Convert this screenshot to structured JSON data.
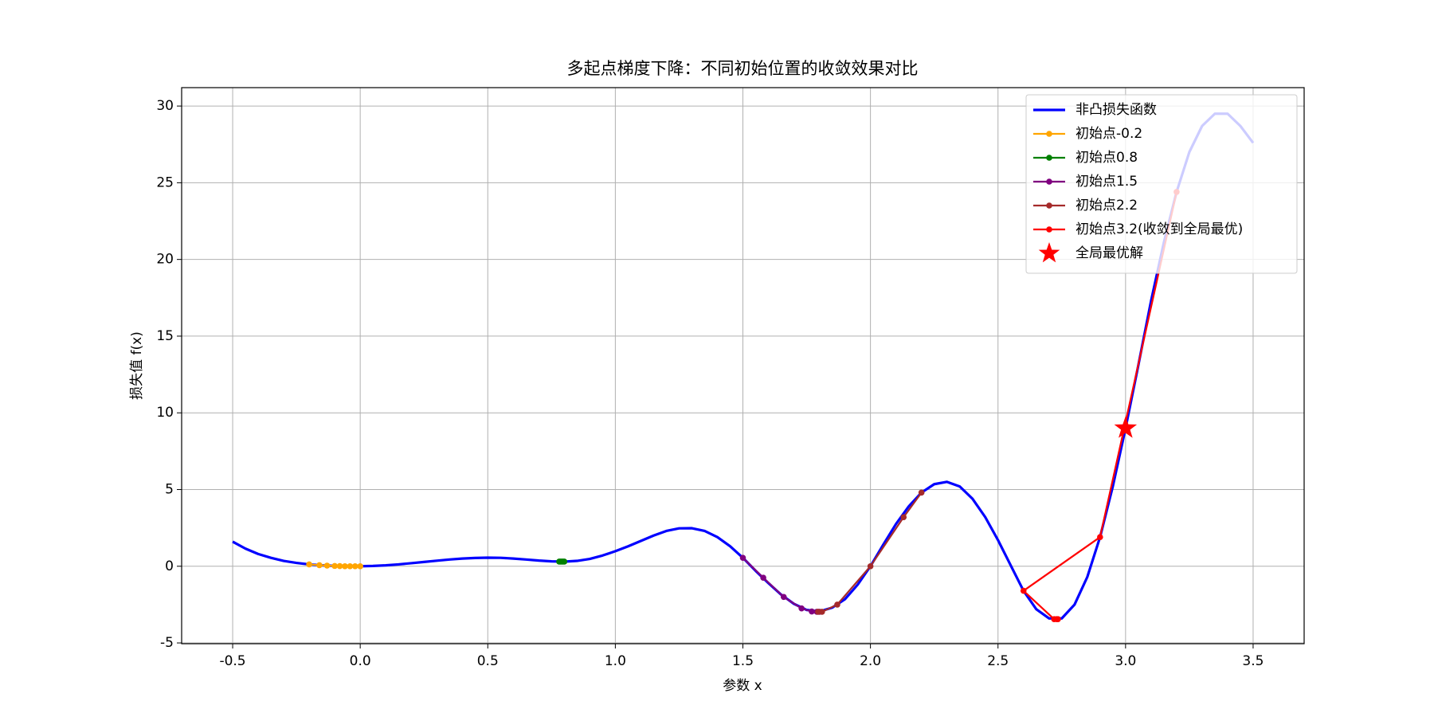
{
  "chart_data": {
    "type": "line",
    "title": "多起点梯度下降：不同初始位置的收敛效果对比",
    "x_label": "参数 x",
    "y_label": "损失值 f(x)",
    "xlim": [
      -0.7,
      3.7
    ],
    "ylim": [
      -5.05,
      31.2
    ],
    "xticks": [
      -0.5,
      {
        "value": 0,
        "label": "0.0"
      },
      0.5,
      {
        "value": 1,
        "label": "1.0"
      },
      1.5,
      {
        "value": 2,
        "label": "2.0"
      },
      2.5,
      {
        "value": 3,
        "label": "3.0"
      },
      3.5
    ],
    "yticks": [
      -5,
      0,
      5,
      10,
      15,
      20,
      25,
      30
    ],
    "grid": true,
    "legend": "upper right",
    "series": [
      {
        "name": "非凸损失函数",
        "color": "#0000ff",
        "marker": "none",
        "x": [
          -0.5,
          -0.45,
          -0.4,
          -0.35,
          -0.3,
          -0.25,
          -0.2,
          -0.15,
          -0.1,
          -0.05,
          0,
          0.05,
          0.1,
          0.15,
          0.2,
          0.25,
          0.3,
          0.35,
          0.4,
          0.45,
          0.5,
          0.55,
          0.6,
          0.65,
          0.7,
          0.75,
          0.8,
          0.85,
          0.9,
          0.95,
          1.0,
          1.05,
          1.1,
          1.15,
          1.2,
          1.25,
          1.3,
          1.35,
          1.4,
          1.45,
          1.5,
          1.55,
          1.6,
          1.65,
          1.7,
          1.75,
          1.8,
          1.85,
          1.9,
          1.95,
          2.0,
          2.05,
          2.1,
          2.15,
          2.2,
          2.25,
          2.3,
          2.35,
          2.4,
          2.45,
          2.5,
          2.55,
          2.6,
          2.65,
          2.7,
          2.75,
          2.8,
          2.85,
          2.9,
          2.95,
          3.0,
          3.05,
          3.1,
          3.15,
          3.2,
          3.25,
          3.3,
          3.35,
          3.4,
          3.45,
          3.5
        ],
        "values": [
          1.6,
          1.15,
          0.8,
          0.55,
          0.35,
          0.22,
          0.12,
          0.06,
          0.02,
          0.0,
          0,
          0.02,
          0.06,
          0.12,
          0.2,
          0.28,
          0.36,
          0.44,
          0.5,
          0.54,
          0.56,
          0.55,
          0.5,
          0.44,
          0.37,
          0.32,
          0.3,
          0.35,
          0.48,
          0.7,
          0.98,
          1.3,
          1.65,
          2.0,
          2.3,
          2.47,
          2.48,
          2.3,
          1.9,
          1.3,
          0.55,
          -0.3,
          -1.1,
          -1.85,
          -2.45,
          -2.85,
          -2.95,
          -2.7,
          -2.15,
          -1.2,
          0,
          1.4,
          2.75,
          3.9,
          4.8,
          5.35,
          5.5,
          5.2,
          4.4,
          3.2,
          1.7,
          0.05,
          -1.6,
          -2.8,
          -3.4,
          -3.4,
          -2.5,
          -0.7,
          1.9,
          5.2,
          9.0,
          13.1,
          17.3,
          21.1,
          24.4,
          27.0,
          28.7,
          29.5,
          29.5,
          28.7,
          27.6
        ]
      },
      {
        "name": "初始点-0.2",
        "color": "#ffa500",
        "marker": "circle",
        "x": [
          -0.2,
          -0.16,
          -0.13,
          -0.1,
          -0.08,
          -0.06,
          -0.04,
          -0.02,
          0
        ],
        "values": [
          0.12,
          0.07,
          0.04,
          0.02,
          0.01,
          0,
          0,
          0,
          0
        ]
      },
      {
        "name": "初始点0.8",
        "color": "#008000",
        "marker": "circle",
        "x": [
          0.8,
          0.795,
          0.79,
          0.785,
          0.78
        ],
        "values": [
          0.3,
          0.3,
          0.3,
          0.3,
          0.3
        ]
      },
      {
        "name": "初始点1.5",
        "color": "#800080",
        "marker": "circle",
        "x": [
          1.5,
          1.58,
          1.66,
          1.73,
          1.77,
          1.79,
          1.8
        ],
        "values": [
          0.55,
          -0.75,
          -2.0,
          -2.75,
          -2.95,
          -2.97,
          -2.97
        ]
      },
      {
        "name": "初始点2.2",
        "color": "#a52a2a",
        "marker": "circle",
        "x": [
          2.2,
          2.13,
          2.0,
          1.87,
          1.81,
          1.795
        ],
        "values": [
          4.8,
          3.2,
          0,
          -2.5,
          -2.97,
          -2.97
        ]
      },
      {
        "name": "初始点3.2(收敛到全局最优)",
        "color": "#ff0000",
        "marker": "circle",
        "x": [
          3.2,
          2.9,
          2.6,
          2.72,
          2.73,
          2.735
        ],
        "values": [
          24.4,
          1.9,
          -1.6,
          -3.45,
          -3.45,
          -3.45
        ]
      },
      {
        "name": "全局最优解",
        "color": "#ff0000",
        "marker": "star",
        "x": [
          3.0
        ],
        "values": [
          9.0
        ]
      }
    ]
  }
}
